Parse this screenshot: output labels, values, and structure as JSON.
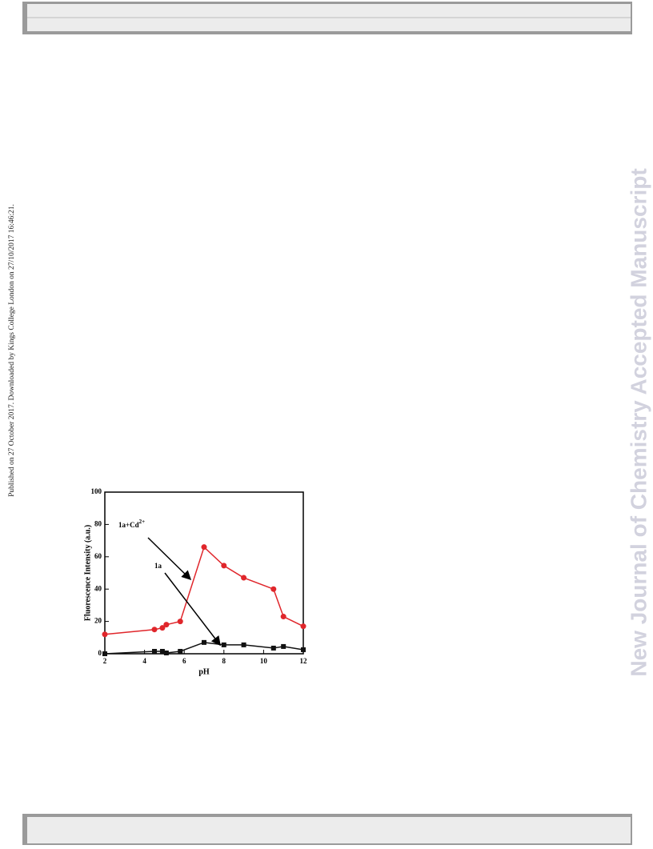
{
  "side_note": "Published on 27 October 2017. Downloaded by Kings College London on 27/10/2017 16:46:21.",
  "watermark": "New Journal of Chemistry Accepted Manuscript",
  "chart_data": {
    "type": "line",
    "x": [
      2,
      4.5,
      4.9,
      5.1,
      5.8,
      7,
      8,
      9,
      10.5,
      11,
      12
    ],
    "series": [
      {
        "name": "1a",
        "color": "#111111",
        "marker": "square",
        "values": [
          0,
          1.5,
          1.5,
          0.5,
          1.5,
          7,
          5.5,
          5.5,
          3.5,
          4.5,
          2.5
        ]
      },
      {
        "name": "1a+Cd2+",
        "color": "#e0262b",
        "marker": "circle",
        "values": [
          12,
          15,
          16,
          18,
          20,
          66,
          54.5,
          47,
          40,
          23,
          17
        ]
      }
    ],
    "annotations": [
      {
        "text": "1a+Cd",
        "sup": "2+"
      },
      {
        "text": "1a"
      }
    ],
    "x_label": "pH",
    "y_label": "Fluorescence Intensity (a.u.)",
    "xlim": [
      2,
      12
    ],
    "xticks": [
      2,
      4,
      6,
      8,
      10,
      12
    ],
    "ylim": [
      0,
      100
    ],
    "yticks": [
      0,
      20,
      40,
      60,
      80,
      100
    ],
    "grid": false
  }
}
